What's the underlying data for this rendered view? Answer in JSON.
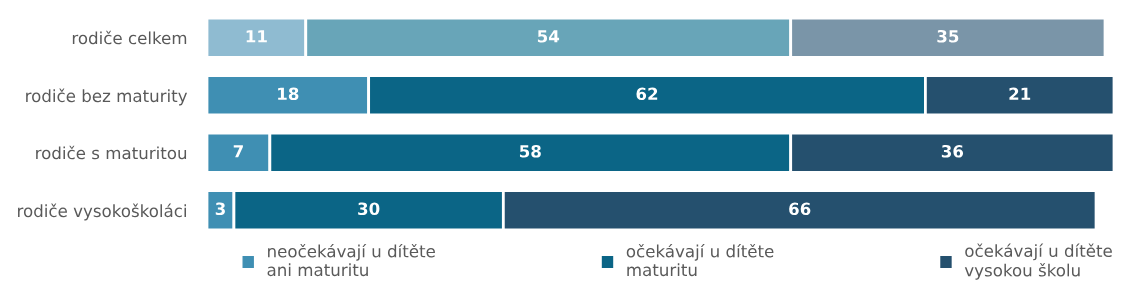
{
  "chart_data": {
    "type": "bar",
    "orientation": "horizontal",
    "stacked": true,
    "data_labels": true,
    "legend": "bottom",
    "grid": false,
    "tick_labels": "y",
    "categories": [
      "rodiče celkem",
      "rodiče bez maturity",
      "rodiče s maturitou",
      "rodiče vysokoškoláci"
    ],
    "series": [
      {
        "name": "neočekávají u dítěte\nani maturitu",
        "color": "#3f8fb3",
        "colors": [
          "#8fbbd1",
          "#3f8fb3",
          "#3f8fb3",
          "#3f8fb3"
        ],
        "values": [
          11,
          18,
          7,
          3
        ]
      },
      {
        "name": "očekávají u dítěte\nmaturitu",
        "color": "#0b6586",
        "colors": [
          "#68a5b8",
          "#0b6586",
          "#0b6586",
          "#0b6586"
        ],
        "values": [
          54,
          62,
          58,
          30
        ]
      },
      {
        "name": "očekávají u dítěte\nvysokou školu",
        "color": "#25506e",
        "colors": [
          "#7a95a8",
          "#25506e",
          "#25506e",
          "#25506e"
        ],
        "values": [
          35,
          21,
          36,
          66
        ]
      }
    ]
  }
}
